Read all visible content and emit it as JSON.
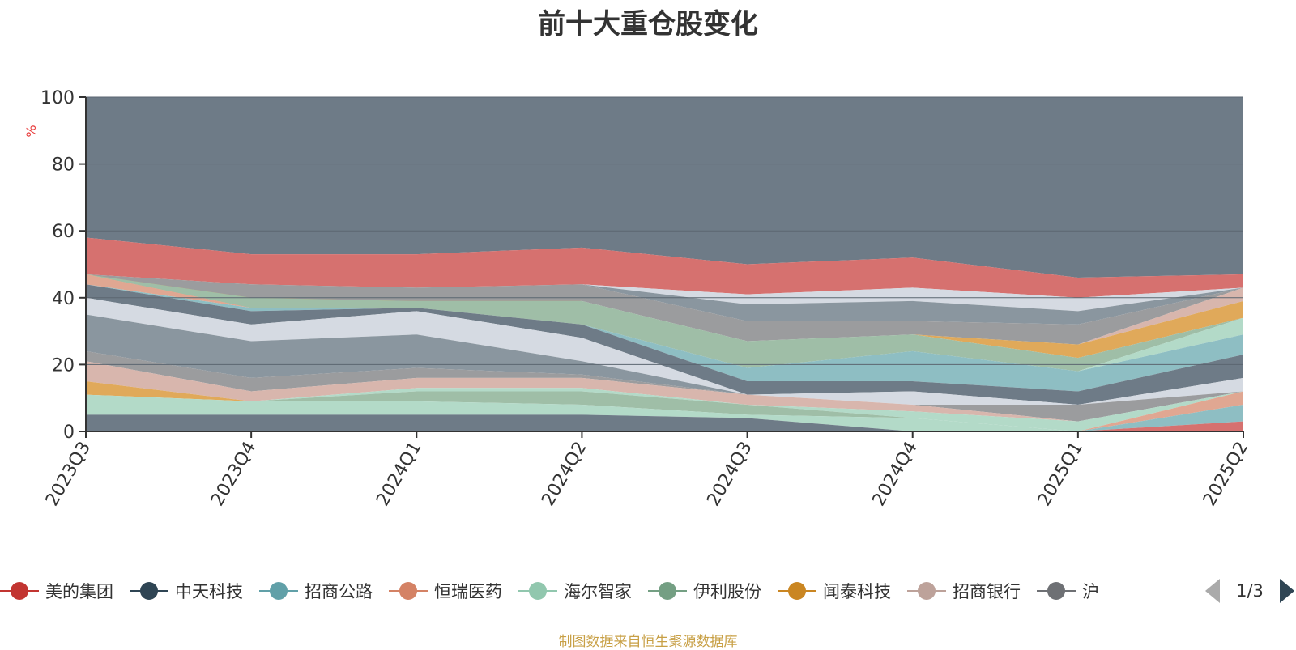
{
  "title": "前十大重仓股变化",
  "footer": "制图数据来自恒生聚源数据库",
  "pager": {
    "text": "1/3"
  },
  "legend": [
    {
      "label": "美的集团",
      "color": "#c23531"
    },
    {
      "label": "中天科技",
      "color": "#2f4554"
    },
    {
      "label": "招商公路",
      "color": "#61a0a8"
    },
    {
      "label": "恒瑞医药",
      "color": "#d48265"
    },
    {
      "label": "海尔智家",
      "color": "#91c7ae"
    },
    {
      "label": "伊利股份",
      "color": "#749f83"
    },
    {
      "label": "闻泰科技",
      "color": "#ca8622"
    },
    {
      "label": "招商银行",
      "color": "#bda29a"
    },
    {
      "label": "沪",
      "color": "#6e7074"
    }
  ],
  "chart_data": {
    "type": "area",
    "ylabel": "%",
    "ylim": [
      0,
      100
    ],
    "yticks": [
      0,
      20,
      40,
      60,
      80,
      100
    ],
    "categories": [
      "2023Q3",
      "2023Q4",
      "2024Q1",
      "2024Q2",
      "2024Q3",
      "2024Q4",
      "2025Q1",
      "2025Q2"
    ],
    "layers": [
      {
        "color": "#6e7b87",
        "values": [
          100,
          100,
          100,
          100,
          100,
          100,
          100,
          100
        ]
      },
      {
        "color": "#d6716f",
        "values": [
          58,
          53,
          53,
          55,
          50,
          52,
          46,
          47
        ]
      },
      {
        "color": "#d5dae2",
        "values": [
          47,
          44,
          43,
          44,
          41,
          43,
          40,
          43
        ]
      },
      {
        "color": "#8a969f",
        "values": [
          47,
          44,
          43,
          44,
          38,
          39,
          36,
          43
        ]
      },
      {
        "color": "#9b9c9e",
        "values": [
          47,
          44,
          43,
          44,
          33,
          33,
          32,
          43
        ]
      },
      {
        "color": "#d8b6ad",
        "values": [
          47,
          37,
          37,
          39,
          27,
          29,
          26,
          43
        ]
      },
      {
        "color": "#e0a95a",
        "values": [
          47,
          37,
          37,
          39,
          27,
          29,
          26,
          39
        ]
      },
      {
        "color": "#9fbea7",
        "values": [
          47,
          40,
          39,
          39,
          27,
          29,
          22,
          34
        ]
      },
      {
        "color": "#b3dac8",
        "values": [
          47,
          37,
          37,
          32,
          19,
          24,
          18,
          34
        ]
      },
      {
        "color": "#e0a792",
        "values": [
          47,
          37,
          37,
          32,
          19,
          24,
          18,
          29
        ]
      },
      {
        "color": "#8ebec3",
        "values": [
          44,
          37,
          37,
          32,
          19,
          24,
          18,
          29
        ]
      },
      {
        "color": "#6e7b87",
        "values": [
          44,
          36,
          37,
          32,
          15,
          15,
          12,
          23
        ]
      },
      {
        "color": "#d5dae2",
        "values": [
          40,
          32,
          36,
          28,
          11,
          12,
          8,
          16
        ]
      },
      {
        "color": "#8a969f",
        "values": [
          35,
          27,
          29,
          21,
          11,
          8,
          8,
          12
        ]
      },
      {
        "color": "#9b9c9e",
        "values": [
          24,
          16,
          19,
          17,
          11,
          8,
          8,
          12
        ]
      },
      {
        "color": "#d8b6ad",
        "values": [
          21,
          12,
          16,
          16,
          11,
          8,
          3,
          12
        ]
      },
      {
        "color": "#e0a95a",
        "values": [
          15,
          9,
          13,
          13,
          8,
          6,
          3,
          12
        ]
      },
      {
        "color": "#b3dac8",
        "values": [
          11,
          9,
          13,
          13,
          8,
          6,
          3,
          12
        ]
      },
      {
        "color": "#9fbea7",
        "values": [
          11,
          9,
          12,
          12,
          8,
          4,
          0,
          12
        ]
      },
      {
        "color": "#b3dac8",
        "values": [
          11,
          9,
          9,
          8,
          5,
          4,
          0,
          12
        ]
      },
      {
        "color": "#e0a792",
        "values": [
          5,
          5,
          5,
          5,
          4,
          0,
          0,
          12
        ]
      },
      {
        "color": "#8ebec3",
        "values": [
          5,
          5,
          5,
          5,
          4,
          0,
          0,
          8
        ]
      },
      {
        "color": "#6e7b87",
        "values": [
          5,
          5,
          5,
          5,
          4,
          0,
          0,
          3
        ]
      },
      {
        "color": "#d6716f",
        "values": [
          0,
          0,
          0,
          0,
          0,
          0,
          0,
          3
        ]
      }
    ]
  }
}
